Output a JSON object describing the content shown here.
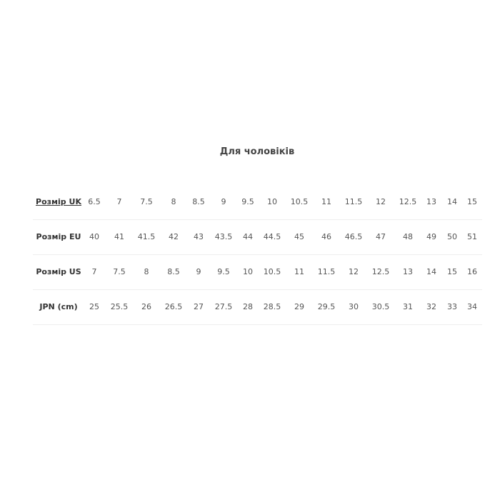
{
  "title": "Для чоловіків",
  "table": {
    "rows": [
      {
        "label": "Розмір UK",
        "linked": true,
        "values": [
          "6.5",
          "7",
          "7.5",
          "8",
          "8.5",
          "9",
          "9.5",
          "10",
          "10.5",
          "11",
          "11.5",
          "12",
          "12.5",
          "13",
          "14",
          "15"
        ]
      },
      {
        "label": "Розмір EU",
        "linked": false,
        "values": [
          "40",
          "41",
          "41.5",
          "42",
          "43",
          "43.5",
          "44",
          "44.5",
          "45",
          "46",
          "46.5",
          "47",
          "48",
          "49",
          "50",
          "51"
        ]
      },
      {
        "label": "Розмір US",
        "linked": false,
        "values": [
          "7",
          "7.5",
          "8",
          "8.5",
          "9",
          "9.5",
          "10",
          "10.5",
          "11",
          "11.5",
          "12",
          "12.5",
          "13",
          "14",
          "15",
          "16"
        ]
      },
      {
        "label": "JPN (cm)",
        "linked": false,
        "values": [
          "25",
          "25.5",
          "26",
          "26.5",
          "27",
          "27.5",
          "28",
          "28.5",
          "29",
          "29.5",
          "30",
          "30.5",
          "31",
          "32",
          "33",
          "34"
        ]
      }
    ]
  }
}
